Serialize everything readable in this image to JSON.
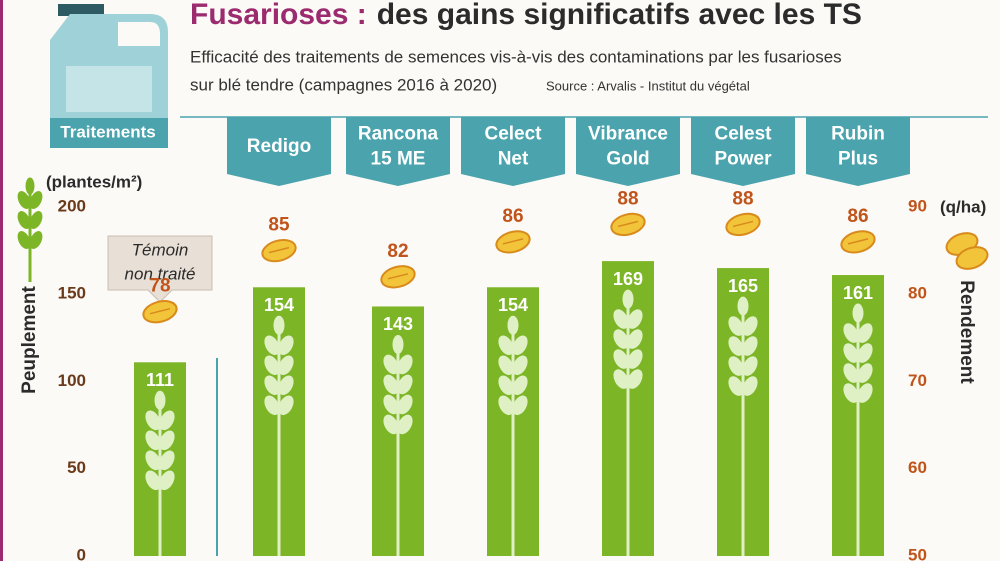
{
  "chart_data": {
    "type": "bar",
    "title_highlight": "Fusarioses :",
    "title": "des gains significatifs avec les TS",
    "subtitle": [
      "Efficacité des traitements de semences vis-à-vis des contaminations par les fusarioses",
      "sur blé tendre (campagnes 2016 à 2020)"
    ],
    "source": "Source : Arvalis - Institut du végétal",
    "category_header": "Traitements",
    "categories": [
      [
        "Témoin",
        "non traité"
      ],
      [
        "Redigo"
      ],
      [
        "Rancona",
        "15 ME"
      ],
      [
        "Celect",
        "Net"
      ],
      [
        "Vibrance",
        "Gold"
      ],
      [
        "Celest",
        "Power"
      ],
      [
        "Rubin",
        "Plus"
      ]
    ],
    "series": [
      {
        "name": "Peuplement",
        "color": "#7cb526",
        "values": [
          111,
          154,
          143,
          154,
          169,
          165,
          161
        ]
      },
      {
        "name": "Rendement",
        "color": "#f2c43a",
        "axis": "y2",
        "values": [
          78,
          85,
          82,
          86,
          88,
          88,
          86
        ]
      }
    ],
    "yunit": "(plantes/m²)",
    "y2unit": "(q/ha)",
    "ylim": [
      0,
      200
    ],
    "yticks": [
      0,
      50,
      100,
      150,
      200
    ],
    "y2lim": [
      50,
      90
    ],
    "y2ticks": [
      50,
      60,
      70,
      80,
      90
    ]
  }
}
